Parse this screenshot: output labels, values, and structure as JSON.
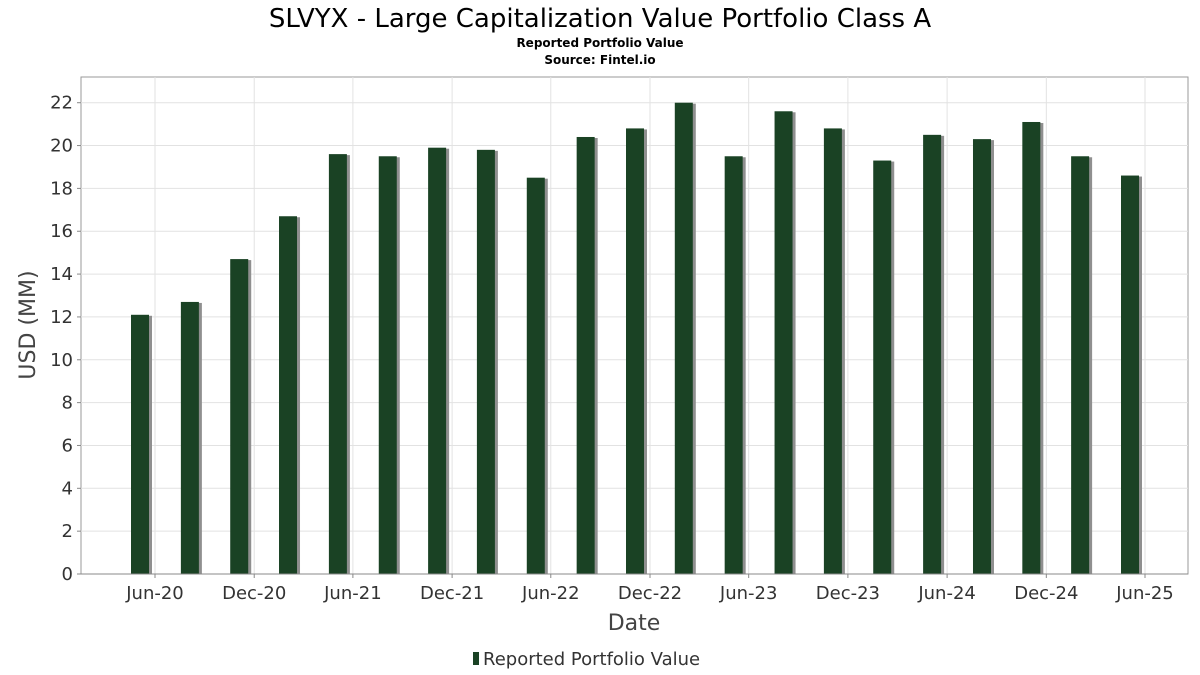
{
  "chart_data": {
    "type": "bar",
    "title": "SLVYX - Large Capitalization Value Portfolio Class A",
    "subtitles": [
      "Reported Portfolio Value",
      "Source: Fintel.io"
    ],
    "xlabel": "Date",
    "ylabel": "USD (MM)",
    "x_tick_labels": [
      "Jun-20",
      "Dec-20",
      "Jun-21",
      "Dec-21",
      "Jun-22",
      "Dec-22",
      "Jun-23",
      "Dec-23",
      "Jun-24",
      "Dec-24",
      "Jun-25"
    ],
    "y_ticks": [
      0,
      2,
      4,
      6,
      8,
      10,
      12,
      14,
      16,
      18,
      20,
      22
    ],
    "ylim": [
      0,
      23.2
    ],
    "grid": true,
    "legend_position": "bottom-center",
    "series": [
      {
        "name": "Reported Portfolio Value",
        "color": "#1a4224",
        "dates": [
          "2020-05-31",
          "2020-08-31",
          "2020-11-30",
          "2021-02-28",
          "2021-05-31",
          "2021-08-31",
          "2021-11-30",
          "2022-02-28",
          "2022-05-31",
          "2022-08-31",
          "2022-11-30",
          "2023-02-28",
          "2023-05-31",
          "2023-08-31",
          "2023-11-30",
          "2024-02-29",
          "2024-05-31",
          "2024-08-31",
          "2024-11-30",
          "2025-02-28",
          "2025-05-31"
        ],
        "values": [
          12.1,
          12.7,
          14.7,
          16.7,
          19.6,
          19.5,
          19.9,
          19.8,
          18.5,
          20.4,
          20.8,
          22.0,
          19.5,
          21.6,
          20.8,
          19.3,
          20.5,
          20.3,
          21.1,
          19.5,
          18.6
        ]
      }
    ]
  }
}
